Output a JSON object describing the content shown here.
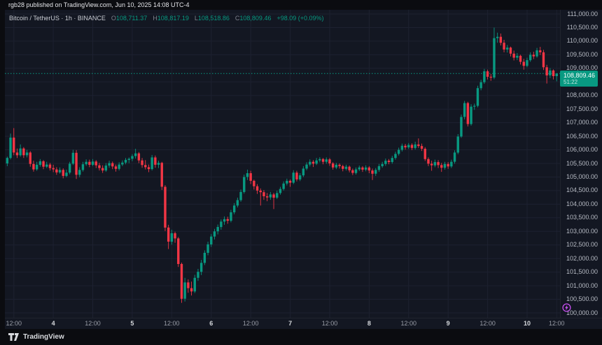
{
  "attribution": {
    "text": "rgb28 published on TradingView.com, Jun 10, 2025 14:08 UTC-4"
  },
  "legend": {
    "title": "Bitcoin / TetherUS · 1h · BINANCE",
    "ohlc": [
      {
        "label": "O",
        "value": "108,711.37"
      },
      {
        "label": "H",
        "value": "108,817.19"
      },
      {
        "label": "L",
        "value": "108,518.86"
      },
      {
        "label": "C",
        "value": "108,809.46"
      }
    ],
    "change": "+98.09 (+0.09%)"
  },
  "price_scale": {
    "current": {
      "price": "108,809.46",
      "countdown": "51:22"
    }
  },
  "footer": {
    "brand": "TradingView"
  },
  "event_icon": {
    "name": "lightning-event",
    "color": "#c74ff0"
  },
  "colors": {
    "background": "#131722",
    "frame": "#0b0c10",
    "grid": "#1d2130",
    "up": "#089981",
    "down": "#f23645",
    "axis_text": "#b6bac3",
    "axis_text_major": "#d7dade",
    "label_bg": "#089981",
    "separator": "#20242e",
    "purple": "#c74ff0"
  },
  "chart_data": {
    "type": "candlestick",
    "title": "Bitcoin / TetherUS",
    "exchange": "BINANCE",
    "interval": "1h",
    "ohlc_current": {
      "open": 108711.37,
      "high": 108817.19,
      "low": 108518.86,
      "close": 108809.46,
      "change": 98.09,
      "change_pct": 0.09
    },
    "y_min": 100000,
    "y_max": 111000,
    "y_step": 500,
    "price_ticks": [
      "111,000.00",
      "110,500.00",
      "110,000.00",
      "109,500.00",
      "109,000.00",
      "108,500.00",
      "108,000.00",
      "107,500.00",
      "107,000.00",
      "106,500.00",
      "106,000.00",
      "105,500.00",
      "105,000.00",
      "104,500.00",
      "104,000.00",
      "103,500.00",
      "103,000.00",
      "102,500.00",
      "102,000.00",
      "101,500.00",
      "101,000.00",
      "100,500.00",
      "100,000.00"
    ],
    "time_ticks": [
      {
        "i": 2,
        "label": "12:00",
        "major": false
      },
      {
        "i": 14,
        "label": "4",
        "major": true
      },
      {
        "i": 26,
        "label": "12:00",
        "major": false
      },
      {
        "i": 38,
        "label": "5",
        "major": true
      },
      {
        "i": 50,
        "label": "12:00",
        "major": false
      },
      {
        "i": 62,
        "label": "6",
        "major": true
      },
      {
        "i": 74,
        "label": "12:00",
        "major": false
      },
      {
        "i": 86,
        "label": "7",
        "major": true
      },
      {
        "i": 98,
        "label": "12:00",
        "major": false
      },
      {
        "i": 110,
        "label": "8",
        "major": true
      },
      {
        "i": 122,
        "label": "12:00",
        "major": false
      },
      {
        "i": 134,
        "label": "9",
        "major": true
      },
      {
        "i": 146,
        "label": "12:00",
        "major": false
      },
      {
        "i": 158,
        "label": "10",
        "major": true
      },
      {
        "i": 167,
        "label": "12:00",
        "major": false
      }
    ],
    "candles": [
      [
        105500,
        105750,
        105400,
        105700
      ],
      [
        105700,
        106600,
        105650,
        106450
      ],
      [
        106450,
        106800,
        105800,
        105900
      ],
      [
        105900,
        106050,
        105700,
        105800
      ],
      [
        105800,
        106200,
        105750,
        106050
      ],
      [
        106050,
        106100,
        105700,
        105800
      ],
      [
        105800,
        106000,
        105720,
        105900
      ],
      [
        105900,
        105950,
        105380,
        105480
      ],
      [
        105480,
        105600,
        105200,
        105280
      ],
      [
        105280,
        105560,
        105230,
        105450
      ],
      [
        105450,
        105660,
        105380,
        105580
      ],
      [
        105580,
        105620,
        105290,
        105380
      ],
      [
        105380,
        105560,
        105330,
        105460
      ],
      [
        105460,
        105520,
        105240,
        105330
      ],
      [
        105330,
        105450,
        105180,
        105280
      ],
      [
        105280,
        105360,
        105080,
        105170
      ],
      [
        105170,
        105350,
        105120,
        105260
      ],
      [
        105260,
        105320,
        104950,
        105040
      ],
      [
        105040,
        105270,
        104990,
        105160
      ],
      [
        105160,
        105560,
        105100,
        105490
      ],
      [
        105490,
        106000,
        105440,
        105890
      ],
      [
        105890,
        105990,
        104930,
        105080
      ],
      [
        105080,
        105360,
        104990,
        105260
      ],
      [
        105260,
        105560,
        105200,
        105470
      ],
      [
        105470,
        105650,
        105410,
        105560
      ],
      [
        105560,
        105640,
        105360,
        105450
      ],
      [
        105450,
        105660,
        105400,
        105570
      ],
      [
        105570,
        105620,
        105330,
        105430
      ],
      [
        105430,
        105520,
        105240,
        105330
      ],
      [
        105330,
        105430,
        105150,
        105240
      ],
      [
        105240,
        105510,
        105190,
        105420
      ],
      [
        105420,
        105600,
        105340,
        105510
      ],
      [
        105510,
        105570,
        105290,
        105390
      ],
      [
        105390,
        105460,
        105200,
        105300
      ],
      [
        105300,
        105540,
        105240,
        105460
      ],
      [
        105460,
        105610,
        105400,
        105530
      ],
      [
        105530,
        105700,
        105470,
        105630
      ],
      [
        105630,
        105720,
        105510,
        105670
      ],
      [
        105670,
        105840,
        105580,
        105770
      ],
      [
        105770,
        106040,
        105680,
        105870
      ],
      [
        105870,
        105920,
        105510,
        105610
      ],
      [
        105610,
        105700,
        105340,
        105440
      ],
      [
        105440,
        105620,
        105280,
        105360
      ],
      [
        105360,
        105460,
        105180,
        105290
      ],
      [
        105290,
        105810,
        105240,
        105720
      ],
      [
        105720,
        105790,
        105340,
        105450
      ],
      [
        105450,
        105600,
        105330,
        105520
      ],
      [
        105520,
        105560,
        104520,
        104640
      ],
      [
        104640,
        104700,
        103010,
        103140
      ],
      [
        103140,
        103240,
        102350,
        102620
      ],
      [
        102620,
        103060,
        102510,
        102930
      ],
      [
        102930,
        102990,
        102580,
        102740
      ],
      [
        102740,
        102790,
        101690,
        101800
      ],
      [
        101800,
        101850,
        100370,
        100520
      ],
      [
        100520,
        101290,
        100420,
        101120
      ],
      [
        101120,
        101230,
        100740,
        100910
      ],
      [
        100910,
        101150,
        100640,
        100790
      ],
      [
        100790,
        101400,
        100730,
        101290
      ],
      [
        101290,
        101620,
        101180,
        101510
      ],
      [
        101510,
        101950,
        101390,
        101840
      ],
      [
        101840,
        102300,
        101760,
        102210
      ],
      [
        102210,
        102620,
        102120,
        102520
      ],
      [
        102520,
        102900,
        102430,
        102810
      ],
      [
        102810,
        103090,
        102700,
        103000
      ],
      [
        103000,
        103250,
        102890,
        103160
      ],
      [
        103160,
        103440,
        103060,
        103360
      ],
      [
        103360,
        103550,
        103240,
        103450
      ],
      [
        103450,
        103540,
        103280,
        103390
      ],
      [
        103390,
        103790,
        103330,
        103700
      ],
      [
        103700,
        104040,
        103630,
        103950
      ],
      [
        103950,
        104240,
        103880,
        104150
      ],
      [
        104150,
        104540,
        104090,
        104450
      ],
      [
        104450,
        105090,
        104390,
        105000
      ],
      [
        105000,
        105270,
        104890,
        105140
      ],
      [
        105140,
        105230,
        104740,
        104860
      ],
      [
        104860,
        104900,
        104540,
        104660
      ],
      [
        104660,
        104740,
        104380,
        104500
      ],
      [
        104500,
        104580,
        103950,
        104440
      ],
      [
        104440,
        104520,
        104160,
        104290
      ],
      [
        104290,
        104410,
        104110,
        104250
      ],
      [
        104250,
        104450,
        104160,
        104360
      ],
      [
        104360,
        104420,
        103820,
        104240
      ],
      [
        104240,
        104500,
        104190,
        104410
      ],
      [
        104410,
        104640,
        104350,
        104560
      ],
      [
        104560,
        104840,
        104500,
        104760
      ],
      [
        104760,
        104940,
        104690,
        104860
      ],
      [
        104860,
        104910,
        104640,
        104790
      ],
      [
        104790,
        105250,
        104740,
        105160
      ],
      [
        105160,
        105230,
        104840,
        104910
      ],
      [
        104910,
        105140,
        104850,
        105060
      ],
      [
        105060,
        105400,
        105000,
        105310
      ],
      [
        105310,
        105540,
        105250,
        105460
      ],
      [
        105460,
        105650,
        105390,
        105560
      ],
      [
        105560,
        105620,
        105370,
        105490
      ],
      [
        105490,
        105700,
        105440,
        105610
      ],
      [
        105610,
        105730,
        105540,
        105660
      ],
      [
        105660,
        105700,
        105470,
        105560
      ],
      [
        105560,
        105720,
        105490,
        105650
      ],
      [
        105650,
        105700,
        105410,
        105500
      ],
      [
        105500,
        105550,
        105270,
        105350
      ],
      [
        105350,
        105520,
        105290,
        105450
      ],
      [
        105450,
        105500,
        105310,
        105400
      ],
      [
        105400,
        105450,
        105210,
        105300
      ],
      [
        105300,
        105450,
        105240,
        105380
      ],
      [
        105380,
        105420,
        105170,
        105250
      ],
      [
        105250,
        105310,
        105070,
        105150
      ],
      [
        105150,
        105350,
        105090,
        105280
      ],
      [
        105280,
        105420,
        105220,
        105350
      ],
      [
        105350,
        105400,
        105190,
        105270
      ],
      [
        105270,
        105430,
        105210,
        105350
      ],
      [
        105350,
        105400,
        105140,
        105240
      ],
      [
        105240,
        105310,
        104890,
        105120
      ],
      [
        105120,
        105330,
        105040,
        105260
      ],
      [
        105260,
        105480,
        105190,
        105400
      ],
      [
        105400,
        105560,
        105340,
        105480
      ],
      [
        105480,
        105680,
        105410,
        105600
      ],
      [
        105600,
        105660,
        105470,
        105550
      ],
      [
        105550,
        105780,
        105490,
        105700
      ],
      [
        105700,
        105930,
        105640,
        105850
      ],
      [
        105850,
        106080,
        105790,
        106000
      ],
      [
        106000,
        106230,
        105940,
        106150
      ],
      [
        106150,
        106220,
        106010,
        106090
      ],
      [
        106090,
        106250,
        106030,
        106180
      ],
      [
        106180,
        106240,
        105990,
        106070
      ],
      [
        106070,
        106300,
        106010,
        106200
      ],
      [
        106200,
        106420,
        106070,
        106140
      ],
      [
        106140,
        106230,
        105960,
        106040
      ],
      [
        106040,
        106100,
        105590,
        105660
      ],
      [
        105660,
        105720,
        105400,
        105490
      ],
      [
        105490,
        105600,
        105230,
        105430
      ],
      [
        105430,
        105640,
        105360,
        105550
      ],
      [
        105550,
        105620,
        105330,
        105440
      ],
      [
        105440,
        105520,
        105190,
        105340
      ],
      [
        105340,
        105560,
        105270,
        105480
      ],
      [
        105480,
        105550,
        105300,
        105390
      ],
      [
        105390,
        105640,
        105330,
        105560
      ],
      [
        105560,
        105980,
        105490,
        105900
      ],
      [
        105900,
        106580,
        105840,
        106490
      ],
      [
        106490,
        107300,
        106440,
        107210
      ],
      [
        107210,
        107800,
        107120,
        107720
      ],
      [
        107720,
        107770,
        106860,
        106950
      ],
      [
        106950,
        107680,
        106890,
        107590
      ],
      [
        107590,
        107700,
        107470,
        107620
      ],
      [
        107620,
        108360,
        107560,
        108270
      ],
      [
        108270,
        108580,
        108190,
        108490
      ],
      [
        108490,
        108980,
        108430,
        108890
      ],
      [
        108890,
        108950,
        108590,
        108690
      ],
      [
        108690,
        108790,
        108540,
        108660
      ],
      [
        108660,
        110500,
        108600,
        110110
      ],
      [
        110110,
        110310,
        109940,
        110160
      ],
      [
        110160,
        110280,
        109840,
        109940
      ],
      [
        109940,
        110050,
        109590,
        109690
      ],
      [
        109690,
        109860,
        109580,
        109760
      ],
      [
        109760,
        109800,
        109440,
        109540
      ],
      [
        109540,
        109650,
        109290,
        109390
      ],
      [
        109390,
        109560,
        109300,
        109460
      ],
      [
        109460,
        109500,
        109140,
        109240
      ],
      [
        109240,
        109350,
        108950,
        109090
      ],
      [
        109090,
        109390,
        109040,
        109300
      ],
      [
        109300,
        109590,
        109240,
        109500
      ],
      [
        109500,
        109610,
        109340,
        109440
      ],
      [
        109440,
        109750,
        109390,
        109660
      ],
      [
        109660,
        109790,
        109490,
        109590
      ],
      [
        109590,
        109680,
        108940,
        109040
      ],
      [
        109040,
        109130,
        108440,
        108740
      ],
      [
        108740,
        109010,
        108640,
        108920
      ],
      [
        108920,
        108960,
        108590,
        108711
      ],
      [
        108711.37,
        108817.19,
        108518.86,
        108809.46
      ]
    ]
  }
}
